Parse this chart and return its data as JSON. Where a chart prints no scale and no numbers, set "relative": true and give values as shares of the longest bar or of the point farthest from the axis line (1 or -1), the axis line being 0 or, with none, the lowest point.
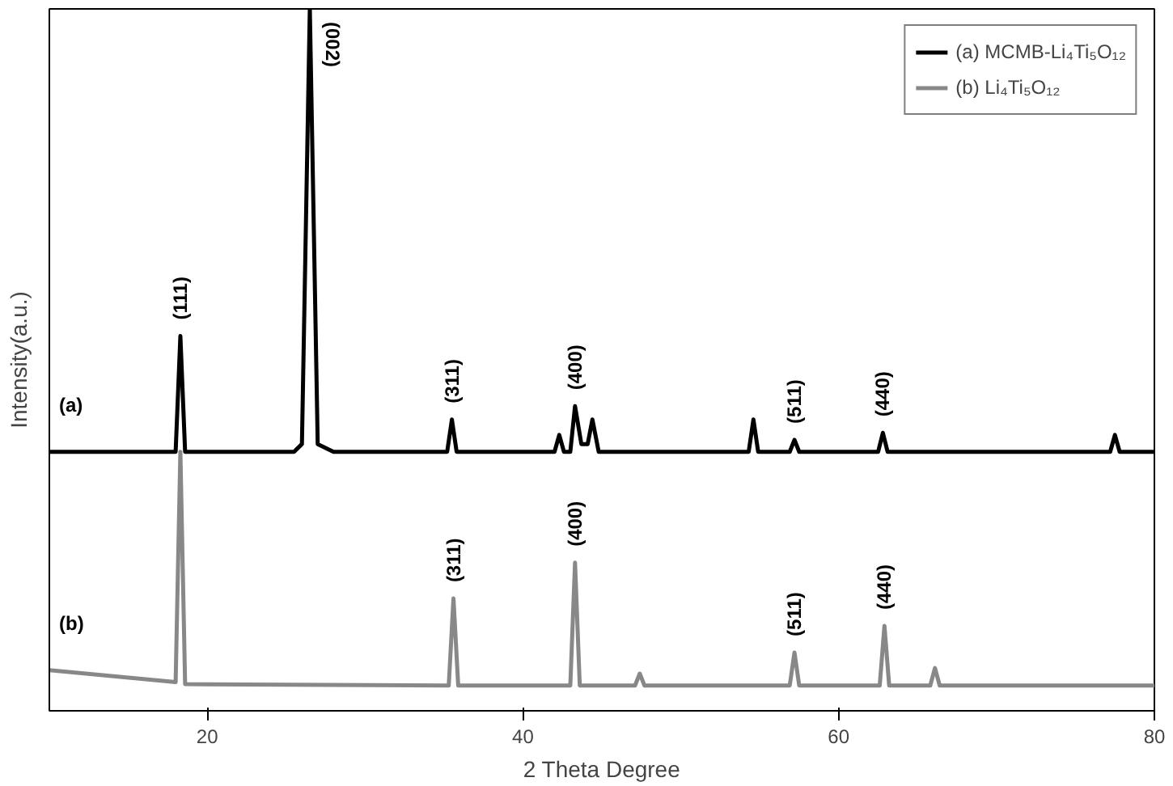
{
  "chart_data": {
    "type": "line",
    "relative": true,
    "xlabel": "2 Theta Degree",
    "ylabel": "Intensity(a.u.)",
    "xlim": [
      10,
      80
    ],
    "xticks": [
      20,
      40,
      60,
      80
    ],
    "grid": false,
    "legend": "top right",
    "marker": "none",
    "line_style": "solid",
    "series": [
      {
        "name": "(a) MCMB-Li₄Ti₅O₁₂",
        "color": "#000000",
        "x": [
          10,
          18,
          18.3,
          18.6,
          25.5,
          26,
          26.5,
          27,
          28,
          35.2,
          35.5,
          35.8,
          42,
          42.3,
          42.6,
          43,
          43.3,
          43.7,
          44.1,
          44.4,
          44.8,
          54.3,
          54.6,
          54.9,
          56.9,
          57.2,
          57.5,
          62.5,
          62.8,
          63.1,
          77.2,
          77.5,
          77.8,
          80
        ],
        "values": [
          0.369,
          0.369,
          0.534,
          0.369,
          0.369,
          0.38,
          1.0,
          0.38,
          0.369,
          0.369,
          0.415,
          0.369,
          0.369,
          0.393,
          0.369,
          0.369,
          0.434,
          0.38,
          0.38,
          0.415,
          0.369,
          0.369,
          0.415,
          0.369,
          0.369,
          0.386,
          0.369,
          0.369,
          0.396,
          0.369,
          0.369,
          0.393,
          0.369,
          0.369
        ]
      },
      {
        "name": "(b) Li₄Ti₅O₁₂",
        "color": "#888888",
        "x": [
          10,
          18,
          18.3,
          18.6,
          35.3,
          35.6,
          35.9,
          43,
          43.3,
          43.6,
          47.1,
          47.4,
          47.7,
          56.9,
          57.2,
          57.5,
          62.6,
          62.9,
          63.2,
          65.8,
          66.1,
          66.4,
          80
        ],
        "values": [
          0.058,
          0.041,
          0.369,
          0.038,
          0.036,
          0.16,
          0.036,
          0.036,
          0.211,
          0.036,
          0.036,
          0.053,
          0.036,
          0.036,
          0.083,
          0.036,
          0.036,
          0.121,
          0.036,
          0.036,
          0.061,
          0.036,
          0.036
        ]
      }
    ],
    "annotations": [
      {
        "text": "(111)",
        "x": 18.3,
        "y": 0.534
      },
      {
        "text": "(002)",
        "x": 26.5,
        "y": 1.0
      },
      {
        "text": "(311)",
        "x": 35.5,
        "y": 0.415
      },
      {
        "text": "(400)",
        "x": 43.3,
        "y": 0.434
      },
      {
        "text": "(511)",
        "x": 57.2,
        "y": 0.386
      },
      {
        "text": "(440)",
        "x": 62.8,
        "y": 0.396
      },
      {
        "text": "(311)",
        "x": 35.6,
        "y": 0.16
      },
      {
        "text": "(400)",
        "x": 43.3,
        "y": 0.211
      },
      {
        "text": "(511)",
        "x": 57.2,
        "y": 0.083
      },
      {
        "text": "(440)",
        "x": 62.9,
        "y": 0.121
      },
      {
        "text": "(a)",
        "x": 10,
        "y": 0.369
      },
      {
        "text": "(b)",
        "x": 10,
        "y": 0.058
      }
    ]
  }
}
